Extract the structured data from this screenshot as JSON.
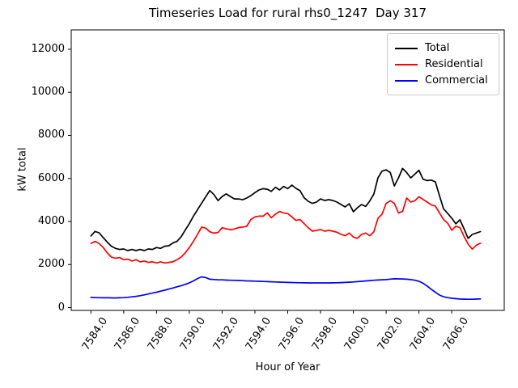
{
  "title": "Timeseries Load for rural rhs0_1247  Day 317",
  "legend": {
    "items": [
      {
        "label": "Total",
        "color": "#000000"
      },
      {
        "label": "Residential",
        "color": "#ff0000"
      },
      {
        "label": "Commercial",
        "color": "#0000ff"
      }
    ]
  },
  "chart_data": {
    "type": "line",
    "title": "Timeseries Load for rural rhs0_1247  Day 317",
    "xlabel": "Hour of Year",
    "ylabel": "kW total",
    "xlim": [
      7582.8,
      7609.2
    ],
    "ylim": [
      -130,
      12900
    ],
    "grid": false,
    "legend_position": "upper right",
    "x_ticks": [
      7584,
      7586,
      7588,
      7590,
      7592,
      7594,
      7596,
      7598,
      7600,
      7602,
      7604,
      7606
    ],
    "x_tick_labels": [
      "7584.0",
      "7586.0",
      "7588.0",
      "7590.0",
      "7592.0",
      "7594.0",
      "7596.0",
      "7598.0",
      "7600.0",
      "7602.0",
      "7604.0",
      "7606.0"
    ],
    "y_ticks": [
      0,
      2000,
      4000,
      6000,
      8000,
      10000,
      12000
    ],
    "y_tick_labels": [
      "0",
      "2000",
      "4000",
      "6000",
      "8000",
      "10000",
      "12000"
    ],
    "x": [
      7584.0,
      7584.25,
      7584.5,
      7584.75,
      7585.0,
      7585.25,
      7585.5,
      7585.75,
      7586.0,
      7586.25,
      7586.5,
      7586.75,
      7587.0,
      7587.25,
      7587.5,
      7587.75,
      7588.0,
      7588.25,
      7588.5,
      7588.75,
      7589.0,
      7589.25,
      7589.5,
      7589.75,
      7590.0,
      7590.25,
      7590.5,
      7590.75,
      7591.0,
      7591.25,
      7591.5,
      7591.75,
      7592.0,
      7592.25,
      7592.5,
      7592.75,
      7593.0,
      7593.25,
      7593.5,
      7593.75,
      7594.0,
      7594.25,
      7594.5,
      7594.75,
      7595.0,
      7595.25,
      7595.5,
      7595.75,
      7596.0,
      7596.25,
      7596.5,
      7596.75,
      7597.0,
      7597.25,
      7597.5,
      7597.75,
      7598.0,
      7598.25,
      7598.5,
      7598.75,
      7599.0,
      7599.25,
      7599.5,
      7599.75,
      7600.0,
      7600.25,
      7600.5,
      7600.75,
      7601.0,
      7601.25,
      7601.5,
      7601.75,
      7602.0,
      7602.25,
      7602.5,
      7602.75,
      7603.0,
      7603.25,
      7603.5,
      7603.75,
      7604.0,
      7604.25,
      7604.5,
      7604.75,
      7605.0,
      7605.25,
      7605.5,
      7605.75,
      7606.0,
      7606.25,
      7606.5,
      7606.75,
      7607.0,
      7607.25,
      7607.5,
      7607.75
    ],
    "series": [
      {
        "name": "Total",
        "color": "#000000",
        "values": [
          3330,
          3540,
          3475,
          3250,
          3040,
          2850,
          2750,
          2700,
          2725,
          2650,
          2700,
          2650,
          2700,
          2650,
          2725,
          2700,
          2790,
          2750,
          2850,
          2875,
          3000,
          3075,
          3290,
          3600,
          3900,
          4250,
          4550,
          4850,
          5150,
          5440,
          5250,
          4970,
          5160,
          5280,
          5160,
          5050,
          5050,
          5010,
          5090,
          5200,
          5340,
          5465,
          5525,
          5500,
          5400,
          5590,
          5465,
          5630,
          5525,
          5690,
          5540,
          5430,
          5100,
          4940,
          4840,
          4900,
          5050,
          4975,
          5015,
          4975,
          4900,
          4790,
          4675,
          4825,
          4450,
          4640,
          4790,
          4700,
          4950,
          5275,
          6030,
          6340,
          6400,
          6275,
          5650,
          6025,
          6465,
          6275,
          6025,
          6200,
          6380,
          5965,
          5900,
          5925,
          5840,
          5200,
          4590,
          4380,
          4150,
          3890,
          4080,
          3660,
          3215,
          3400,
          3465,
          3530
        ]
      },
      {
        "name": "Residential",
        "color": "#ff0000",
        "values": [
          2980,
          3075,
          2975,
          2790,
          2540,
          2350,
          2290,
          2325,
          2225,
          2250,
          2165,
          2225,
          2125,
          2165,
          2100,
          2125,
          2075,
          2125,
          2075,
          2100,
          2125,
          2225,
          2350,
          2540,
          2790,
          3075,
          3400,
          3740,
          3690,
          3525,
          3460,
          3490,
          3710,
          3660,
          3620,
          3650,
          3715,
          3740,
          3775,
          4090,
          4215,
          4250,
          4250,
          4400,
          4175,
          4340,
          4465,
          4400,
          4365,
          4215,
          4050,
          4090,
          3900,
          3710,
          3550,
          3590,
          3625,
          3550,
          3590,
          3550,
          3500,
          3400,
          3340,
          3465,
          3275,
          3215,
          3400,
          3465,
          3340,
          3525,
          4150,
          4340,
          4840,
          4965,
          4840,
          4400,
          4465,
          5090,
          4900,
          4965,
          5150,
          5025,
          4900,
          4775,
          4715,
          4400,
          4090,
          3920,
          3590,
          3780,
          3715,
          3300,
          2950,
          2715,
          2900,
          2990
        ]
      },
      {
        "name": "Commercial",
        "color": "#0000ff",
        "values": [
          470,
          465,
          460,
          457,
          455,
          452,
          450,
          455,
          462,
          478,
          500,
          525,
          555,
          592,
          632,
          672,
          715,
          762,
          810,
          860,
          912,
          965,
          1020,
          1080,
          1150,
          1240,
          1350,
          1430,
          1395,
          1320,
          1305,
          1295,
          1288,
          1280,
          1272,
          1265,
          1258,
          1250,
          1242,
          1235,
          1228,
          1220,
          1213,
          1205,
          1198,
          1190,
          1183,
          1176,
          1170,
          1164,
          1158,
          1154,
          1150,
          1148,
          1146,
          1145,
          1145,
          1146,
          1148,
          1152,
          1156,
          1162,
          1170,
          1180,
          1192,
          1205,
          1220,
          1238,
          1255,
          1270,
          1282,
          1292,
          1302,
          1322,
          1338,
          1335,
          1330,
          1320,
          1300,
          1270,
          1220,
          1130,
          1000,
          855,
          710,
          585,
          505,
          462,
          435,
          415,
          400,
          392,
          388,
          390,
          395,
          402
        ]
      }
    ]
  }
}
